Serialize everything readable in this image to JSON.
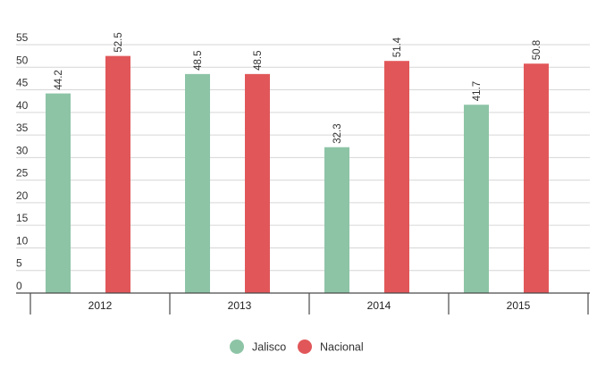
{
  "chart_data": {
    "type": "bar",
    "categories": [
      "2012",
      "2013",
      "2014",
      "2015"
    ],
    "series": [
      {
        "name": "Jalisco",
        "color": "#8dc4a6",
        "values": [
          44.2,
          48.5,
          32.3,
          41.7
        ]
      },
      {
        "name": "Nacional",
        "color": "#e15759",
        "values": [
          52.5,
          48.5,
          51.4,
          50.8
        ]
      }
    ],
    "value_labels": [
      [
        "44.2",
        "48.5",
        "32.3",
        "41.7"
      ],
      [
        "52.5",
        "48.5",
        "51.4",
        "50.8"
      ]
    ],
    "yticks": [
      0,
      5,
      10,
      15,
      20,
      25,
      30,
      35,
      40,
      45,
      50,
      55
    ],
    "ylim": [
      0,
      55
    ],
    "grid": true,
    "legend": "bottom-center",
    "title": "",
    "xlabel": "",
    "ylabel": ""
  }
}
